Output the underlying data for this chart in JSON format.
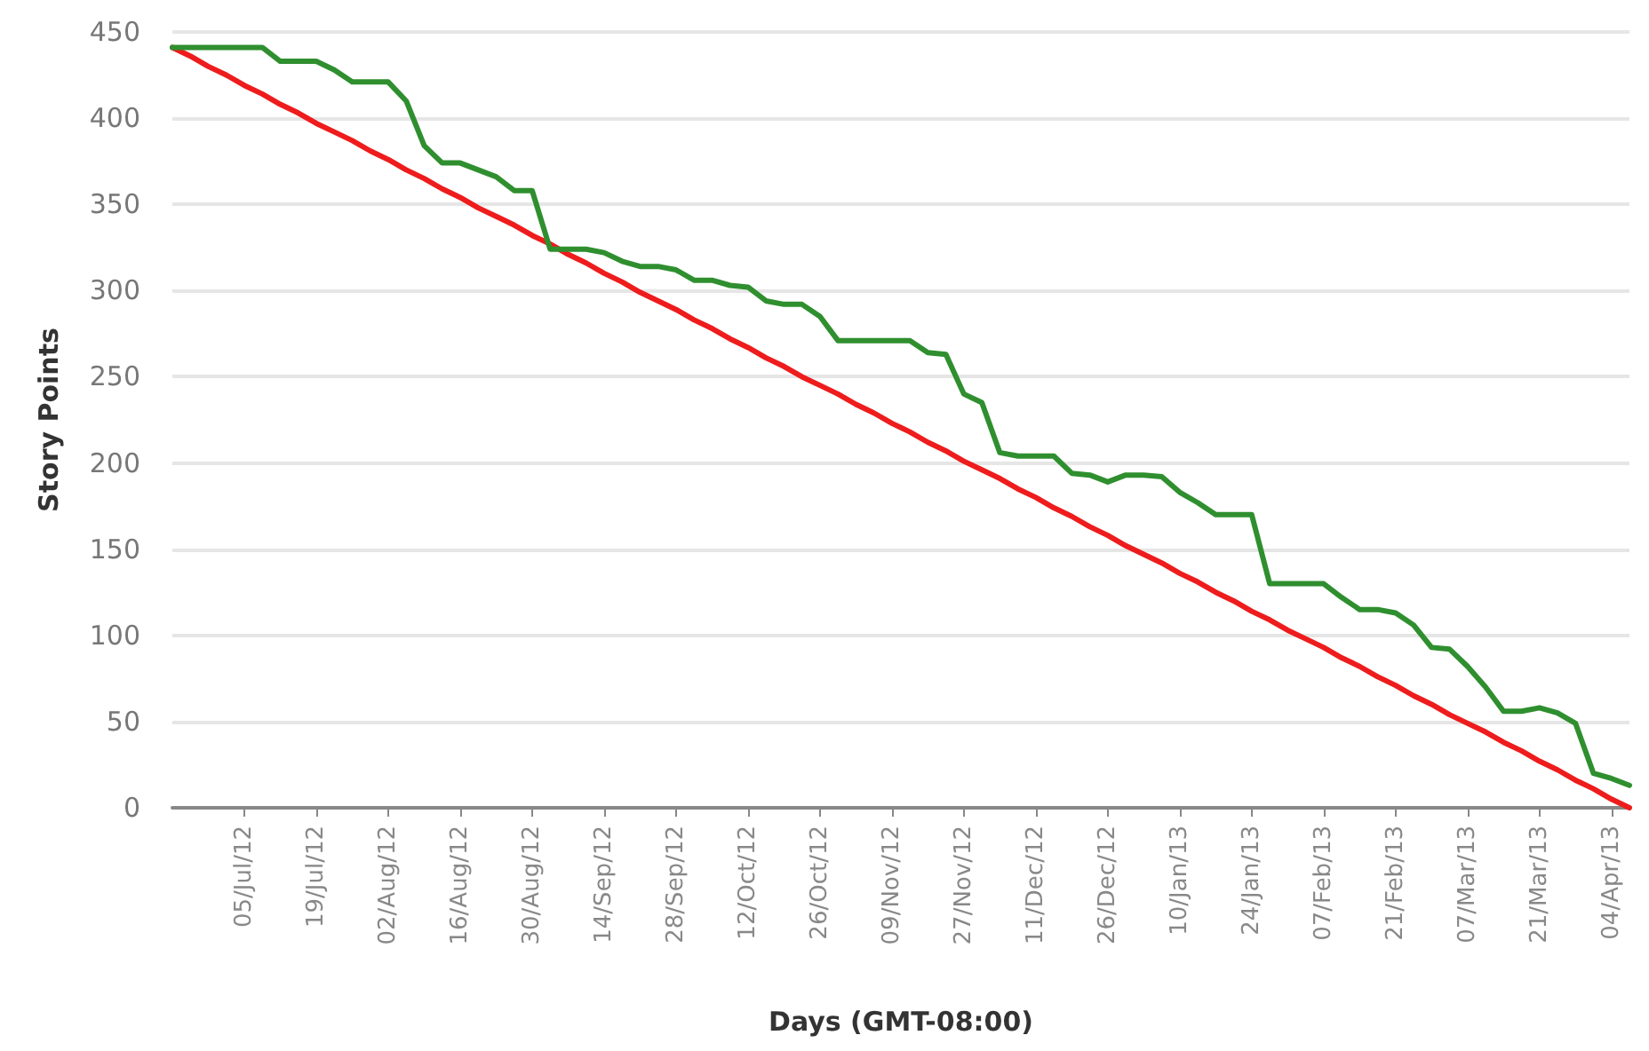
{
  "chart_data": {
    "type": "line",
    "xlabel": "Days (GMT-08:00)",
    "ylabel": "Story Points",
    "categories": [
      null,
      null,
      null,
      null,
      "05/Jul/12",
      null,
      null,
      null,
      "19/Jul/12",
      null,
      null,
      null,
      "02/Aug/12",
      null,
      null,
      null,
      "16/Aug/12",
      null,
      null,
      null,
      "30/Aug/12",
      null,
      null,
      null,
      "14/Sep/12",
      null,
      null,
      null,
      "28/Sep/12",
      null,
      null,
      null,
      "12/Oct/12",
      null,
      null,
      null,
      "26/Oct/12",
      null,
      null,
      null,
      "09/Nov/12",
      null,
      null,
      null,
      "27/Nov/12",
      null,
      null,
      null,
      "11/Dec/12",
      null,
      null,
      null,
      "26/Dec/12",
      null,
      null,
      null,
      "10/Jan/13",
      null,
      null,
      null,
      "24/Jan/13",
      null,
      null,
      null,
      "07/Feb/13",
      null,
      null,
      null,
      "21/Feb/13",
      null,
      null,
      null,
      "07/Mar/13",
      null,
      null,
      null,
      "21/Mar/13",
      null,
      null,
      null,
      "04/Apr/13",
      null
    ],
    "series": [
      {
        "color": "#ee1c1c",
        "values": [
          441,
          436,
          430,
          425,
          419,
          414,
          408,
          403,
          397,
          392,
          387,
          381,
          376,
          370,
          365,
          359,
          354,
          348,
          343,
          338,
          332,
          327,
          321,
          316,
          310,
          305,
          299,
          294,
          289,
          283,
          278,
          272,
          267,
          261,
          256,
          250,
          245,
          240,
          234,
          229,
          223,
          218,
          212,
          207,
          201,
          196,
          191,
          185,
          180,
          174,
          169,
          163,
          158,
          152,
          147,
          142,
          136,
          131,
          125,
          120,
          114,
          109,
          103,
          98,
          93,
          87,
          82,
          76,
          71,
          65,
          60,
          54,
          49,
          44,
          38,
          33,
          27,
          22,
          16,
          11,
          5,
          0
        ]
      },
      {
        "color": "#2f8f2f",
        "values": [
          441,
          441,
          441,
          441,
          441,
          441,
          433,
          433,
          433,
          428,
          421,
          421,
          421,
          410,
          384,
          374,
          374,
          370,
          366,
          358,
          358,
          324,
          324,
          324,
          322,
          317,
          314,
          314,
          312,
          306,
          306,
          303,
          302,
          294,
          292,
          292,
          285,
          271,
          271,
          271,
          271,
          271,
          264,
          263,
          240,
          235,
          206,
          204,
          204,
          204,
          194,
          193,
          189,
          193,
          193,
          192,
          183,
          177,
          170,
          170,
          170,
          130,
          130,
          130,
          130,
          122,
          115,
          115,
          113,
          106,
          93,
          92,
          82,
          70,
          56,
          56,
          58,
          55,
          49,
          20,
          17,
          13
        ]
      }
    ],
    "ylim": [
      0,
      450
    ],
    "yticks": [
      0,
      50,
      100,
      150,
      200,
      250,
      300,
      350,
      400,
      450
    ],
    "grid": "y",
    "marker": "none",
    "line_style": "solid"
  }
}
